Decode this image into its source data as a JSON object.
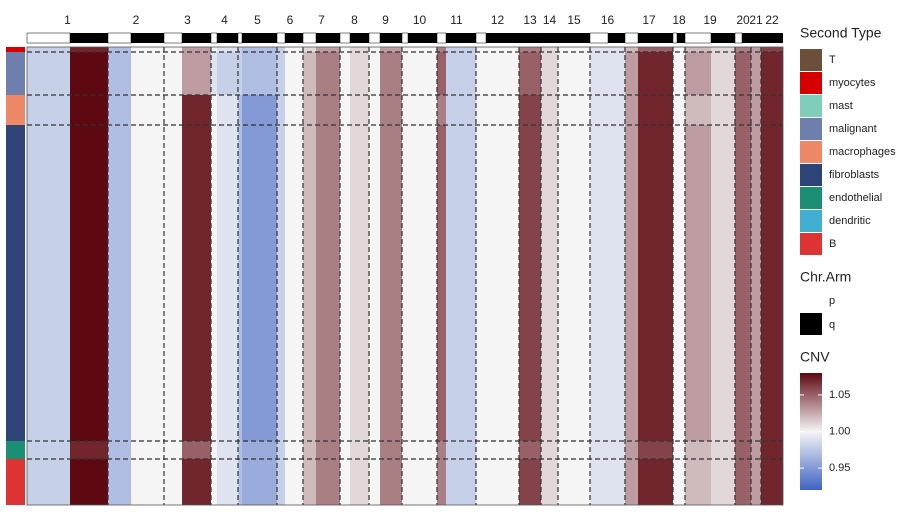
{
  "chart_data": {
    "type": "heatmap",
    "chromosomes": [
      "1",
      "2",
      "3",
      "4",
      "5",
      "6",
      "7",
      "8",
      "9",
      "10",
      "11",
      "12",
      "13",
      "14",
      "15",
      "16",
      "17",
      "18",
      "19",
      "20",
      "21",
      "22"
    ],
    "bins": [
      0,
      810,
      1370,
      1840,
      2110,
      2500,
      2760,
      3130,
      3420,
      3750,
      4100,
      4490,
      4920,
      5140,
      5310,
      5630,
      5980,
      6460,
      6580,
      7080,
      7240,
      7340,
      7560
    ],
    "p_end": [
      430,
      1040,
      1550,
      1900,
      2150,
      2580,
      2890,
      3230,
      3530,
      3810,
      4190,
      4590,
      4920,
      5140,
      5310,
      5810,
      6110,
      6500,
      6840,
      7150,
      7240,
      7340
    ],
    "groups": [
      {
        "type": "myocytes",
        "count": 5,
        "values": [
          [
            0.98,
            1.07
          ],
          [
            0.97,
            1.0
          ],
          [
            1.0,
            1.03
          ],
          [
            1.0,
            0.99
          ],
          [
            0.98,
            0.97
          ],
          [
            0.98,
            1.0
          ],
          [
            1.01,
            1.03
          ],
          [
            1.0,
            1.01
          ],
          [
            1.0,
            1.03
          ],
          [
            1.0,
            1.0
          ],
          [
            1.04,
            0.98
          ],
          [
            1.0,
            1.0
          ],
          [
            1.0,
            1.04
          ],
          [
            1.0,
            1.01
          ],
          [
            1.0,
            1.0
          ],
          [
            0.99,
            0.99
          ],
          [
            1.02,
            1.05
          ],
          [
            1.0,
            1.0
          ],
          [
            1.02,
            1.01
          ],
          [
            1.04,
            1.04
          ],
          [
            1.03,
            1.03
          ],
          [
            1.06,
            1.06
          ]
        ]
      },
      {
        "type": "malignant",
        "count": 43,
        "values": [
          [
            0.98,
            1.08
          ],
          [
            0.97,
            1.0
          ],
          [
            1.0,
            1.03
          ],
          [
            0.99,
            0.98
          ],
          [
            0.98,
            0.97
          ],
          [
            0.98,
            1.0
          ],
          [
            1.02,
            1.04
          ],
          [
            1.0,
            1.01
          ],
          [
            1.0,
            1.04
          ],
          [
            1.0,
            1.0
          ],
          [
            1.05,
            0.98
          ],
          [
            1.0,
            1.0
          ],
          [
            1.0,
            1.05
          ],
          [
            1.0,
            1.01
          ],
          [
            1.0,
            1.0
          ],
          [
            0.99,
            0.99
          ],
          [
            1.03,
            1.07
          ],
          [
            1.0,
            1.0
          ],
          [
            1.03,
            1.01
          ],
          [
            1.05,
            1.05
          ],
          [
            1.03,
            1.03
          ],
          [
            1.07,
            1.07
          ]
        ]
      },
      {
        "type": "macrophages",
        "count": 30,
        "values": [
          [
            0.98,
            1.08
          ],
          [
            0.97,
            1.0
          ],
          [
            1.0,
            1.07
          ],
          [
            1.0,
            0.99
          ],
          [
            0.97,
            0.95
          ],
          [
            0.98,
            1.0
          ],
          [
            1.02,
            1.04
          ],
          [
            1.0,
            1.01
          ],
          [
            1.0,
            1.04
          ],
          [
            1.0,
            1.0
          ],
          [
            1.04,
            0.98
          ],
          [
            1.0,
            1.0
          ],
          [
            1.0,
            1.06
          ],
          [
            1.0,
            1.01
          ],
          [
            1.0,
            1.0
          ],
          [
            0.99,
            0.99
          ],
          [
            1.03,
            1.07
          ],
          [
            1.0,
            1.0
          ],
          [
            1.02,
            1.01
          ],
          [
            1.05,
            1.05
          ],
          [
            1.03,
            1.03
          ],
          [
            1.07,
            1.07
          ]
        ]
      },
      {
        "type": "fibroblasts",
        "count": 316,
        "values": [
          [
            0.98,
            1.08
          ],
          [
            0.97,
            1.0
          ],
          [
            1.0,
            1.07
          ],
          [
            1.0,
            0.99
          ],
          [
            0.97,
            0.95
          ],
          [
            0.98,
            1.0
          ],
          [
            1.02,
            1.04
          ],
          [
            1.0,
            1.01
          ],
          [
            1.0,
            1.04
          ],
          [
            1.0,
            1.0
          ],
          [
            1.05,
            0.98
          ],
          [
            1.0,
            1.0
          ],
          [
            1.0,
            1.06
          ],
          [
            1.0,
            1.01
          ],
          [
            1.0,
            1.0
          ],
          [
            0.99,
            0.99
          ],
          [
            1.03,
            1.07
          ],
          [
            1.0,
            1.0
          ],
          [
            1.03,
            1.01
          ],
          [
            1.05,
            1.05
          ],
          [
            1.03,
            1.03
          ],
          [
            1.07,
            1.07
          ]
        ]
      },
      {
        "type": "endothelial",
        "count": 18,
        "values": [
          [
            0.98,
            1.07
          ],
          [
            0.97,
            1.0
          ],
          [
            1.0,
            1.05
          ],
          [
            1.0,
            0.99
          ],
          [
            0.97,
            0.96
          ],
          [
            0.98,
            1.0
          ],
          [
            1.02,
            1.04
          ],
          [
            1.0,
            1.01
          ],
          [
            1.0,
            1.04
          ],
          [
            1.0,
            1.0
          ],
          [
            1.04,
            0.98
          ],
          [
            1.0,
            1.0
          ],
          [
            1.0,
            1.05
          ],
          [
            1.0,
            1.01
          ],
          [
            1.0,
            1.0
          ],
          [
            0.99,
            0.99
          ],
          [
            1.03,
            1.06
          ],
          [
            1.0,
            1.0
          ],
          [
            1.02,
            1.01
          ],
          [
            1.05,
            1.05
          ],
          [
            1.03,
            1.03
          ],
          [
            1.07,
            1.07
          ]
        ]
      },
      {
        "type": "B",
        "count": 46,
        "values": [
          [
            0.98,
            1.08
          ],
          [
            0.97,
            1.0
          ],
          [
            1.0,
            1.07
          ],
          [
            1.0,
            0.99
          ],
          [
            0.97,
            0.96
          ],
          [
            0.98,
            1.0
          ],
          [
            1.02,
            1.04
          ],
          [
            1.0,
            1.01
          ],
          [
            1.0,
            1.04
          ],
          [
            1.0,
            1.0
          ],
          [
            1.04,
            0.98
          ],
          [
            1.0,
            1.0
          ],
          [
            1.0,
            1.06
          ],
          [
            1.0,
            1.01
          ],
          [
            1.0,
            1.0
          ],
          [
            0.99,
            0.99
          ],
          [
            1.03,
            1.07
          ],
          [
            1.0,
            1.0
          ],
          [
            1.02,
            1.01
          ],
          [
            1.05,
            1.05
          ],
          [
            1.03,
            1.03
          ],
          [
            1.07,
            1.07
          ]
        ]
      }
    ],
    "type_legend": {
      "title": "Second Type",
      "entries": [
        {
          "name": "T",
          "color": "#6b4f3a"
        },
        {
          "name": "myocytes",
          "color": "#d40000"
        },
        {
          "name": "mast",
          "color": "#7fcdbb"
        },
        {
          "name": "malignant",
          "color": "#6e7fad"
        },
        {
          "name": "macrophages",
          "color": "#ee8866"
        },
        {
          "name": "fibroblasts",
          "color": "#2e4479"
        },
        {
          "name": "endothelial",
          "color": "#1b8f73"
        },
        {
          "name": "dendritic",
          "color": "#41b0d0"
        },
        {
          "name": "B",
          "color": "#dd3333"
        }
      ]
    },
    "arm_legend": {
      "title": "Chr.Arm",
      "entries": [
        {
          "name": "p",
          "color": "#ffffff"
        },
        {
          "name": "q",
          "color": "#000000"
        }
      ]
    },
    "colorbar": {
      "title": "CNV",
      "ylim": [
        0.92,
        1.08
      ],
      "yticks": [
        0.95,
        {
          "value": 1,
          "label": "1.00"
        },
        1.05
      ],
      "colors": [
        "#3f63c4",
        "#f5f5f5",
        "#5e0812"
      ]
    }
  }
}
